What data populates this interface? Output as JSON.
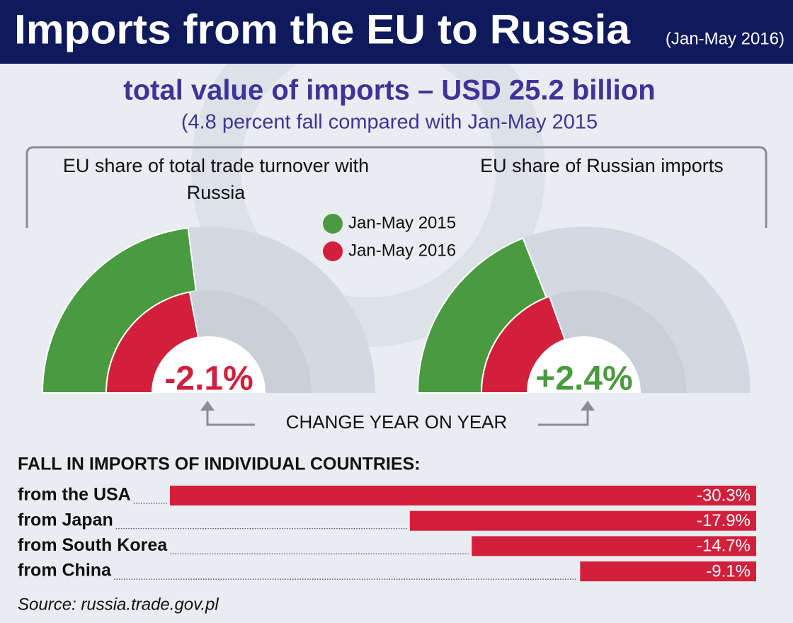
{
  "title": "Imports from the EU to Russia",
  "period": "(Jan-May 2016)",
  "headline": "total value of imports – USD 25.2 billion",
  "subheadline": "(4.8 percent fall compared with Jan-May 2015",
  "caption": "CHANGE YEAR ON YEAR",
  "source": "Source: russia.trade.gov.pl",
  "chart_data": [
    {
      "type": "gauge",
      "title": "EU share of total trade turnover with Russia",
      "series": [
        {
          "name": "Jan-May 2015",
          "color": "#4a9a3f",
          "values": [
            46
          ]
        },
        {
          "name": "Jan-May 2016",
          "color": "#d21f3c",
          "values": [
            44
          ]
        }
      ],
      "annotation": "-2.1%",
      "annotation_color": "#d21f3c"
    },
    {
      "type": "gauge",
      "title": "EU share of Russian imports",
      "series": [
        {
          "color": "#4a9a3f",
          "values": [
            38
          ]
        },
        {
          "color": "#d21f3c",
          "values": [
            39
          ]
        }
      ],
      "annotation": "+2.4%",
      "annotation_color": "#4a9a3f"
    },
    {
      "type": "hbar",
      "title": "FALL IN IMPORTS OF INDIVIDUAL COUNTRIES:",
      "categories": [
        "from the USA",
        "from Japan",
        "from South Korea",
        "from China"
      ],
      "values": [
        -30.3,
        -17.9,
        -14.7,
        -9.1
      ],
      "value_labels": [
        "-30.3%",
        "-17.9%",
        "-14.7%",
        "-9.1%"
      ],
      "color": "#d21f3c"
    }
  ]
}
